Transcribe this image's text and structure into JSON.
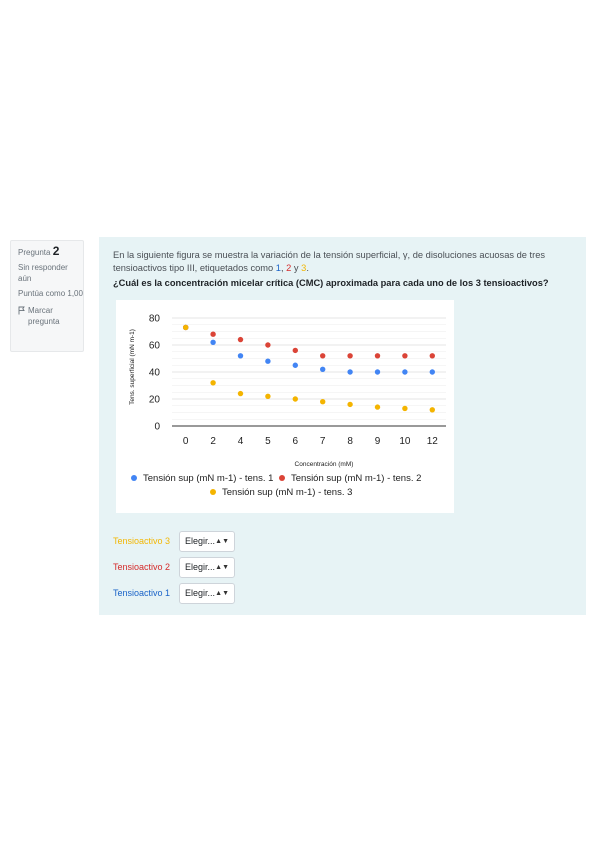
{
  "question_info": {
    "question_prefix": "Pregunta",
    "question_number": "2",
    "status": "Sin responder aún",
    "score": "Puntúa como 1,00",
    "flag_label": "Marcar pregunta"
  },
  "question": {
    "text_before": "En la siguiente figura se muestra la variación de la tensión superficial, γ, de disoluciones acuosas de tres tensioactivos tipo III, etiquetados como ",
    "label1": "1",
    "sep1": ", ",
    "label2": "2",
    "sep2": " y ",
    "label3": "3",
    "text_after": ".",
    "bold_text": "¿Cuál es la concentración micelar crítica (CMC) aproximada para cada uno de los 3 tensioactivos?"
  },
  "answers": [
    {
      "label": "Tensioactivo 3",
      "value": "Elegir...",
      "color": "#f2b705"
    },
    {
      "label": "Tensioactivo 2",
      "value": "Elegir...",
      "color": "#d52b2b"
    },
    {
      "label": "Tensioactivo 1",
      "value": "Elegir...",
      "color": "#1a63c8"
    }
  ],
  "colors": {
    "series1": "#4285f4",
    "series2": "#db4437",
    "series3": "#f4b400"
  },
  "chart_data": {
    "type": "scatter",
    "xlabel": "Concentración (mM)",
    "ylabel": "Tens. superficial (mN m-1)",
    "x": [
      0,
      2,
      4,
      5,
      6,
      7,
      8,
      9,
      10,
      12
    ],
    "xticks": [
      "0",
      "2",
      "4",
      "5",
      "6",
      "7",
      "8",
      "9",
      "10",
      "12"
    ],
    "yticks": [
      0,
      20,
      40,
      60,
      80
    ],
    "ylim": [
      0,
      80
    ],
    "grid": true,
    "legend_position": "bottom",
    "series": [
      {
        "name": "Tensión sup (mN m-1) - tens. 1",
        "values": [
          73,
          62,
          52,
          48,
          45,
          42,
          40,
          40,
          40,
          40
        ]
      },
      {
        "name": "Tensión sup (mN m-1) - tens. 2",
        "values": [
          73,
          68,
          64,
          60,
          56,
          52,
          52,
          52,
          52,
          52
        ]
      },
      {
        "name": "Tensión sup (mN m-1) - tens. 3",
        "values": [
          73,
          32,
          24,
          22,
          20,
          18,
          16,
          14,
          13,
          12
        ]
      }
    ]
  }
}
